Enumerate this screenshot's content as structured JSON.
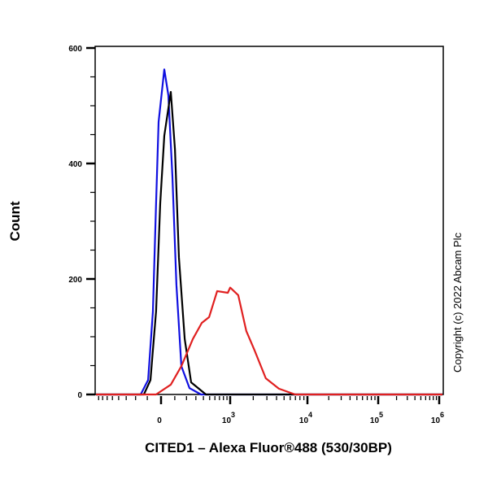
{
  "chart_data": {
    "type": "line",
    "title": "",
    "xlabel": "CITED1 – Alexa Fluor®488 (530/30BP)",
    "ylabel": "Count",
    "x_scale": "biexponential",
    "ylim": [
      0,
      600
    ],
    "y_ticks": [
      0,
      200,
      400,
      600
    ],
    "y_tick_labels": [
      "0",
      "200",
      "400",
      "600"
    ],
    "x_ticks": [
      0,
      1000,
      10000,
      100000,
      1000000
    ],
    "x_tick_labels": [
      {
        "base": "0",
        "exp": ""
      },
      {
        "base": "10",
        "exp": "3"
      },
      {
        "base": "10",
        "exp": "4"
      },
      {
        "base": "10",
        "exp": "5"
      },
      {
        "base": "10",
        "exp": "6"
      }
    ],
    "grid": false,
    "annotation": "Copyright (c) 2022 Abcam Plc",
    "series": [
      {
        "color": "#1010e0",
        "x": [
          -154,
          -94,
          -58,
          -35,
          -17,
          23,
          52,
          82,
          113,
          154,
          230,
          366
        ],
        "y": [
          0,
          25,
          144,
          331,
          472,
          563,
          518,
          377,
          190,
          49,
          11,
          0
        ]
      },
      {
        "color": "#000000",
        "x": [
          -127,
          -76,
          -35,
          -6,
          23,
          70,
          101,
          133,
          183,
          247,
          438
        ],
        "y": [
          0,
          25,
          144,
          331,
          448,
          524,
          425,
          237,
          96,
          21,
          0
        ]
      },
      {
        "color": "#e02020",
        "x": [
          -35,
          70,
          154,
          265,
          377,
          491,
          647,
          924,
          1000,
          1274,
          1624,
          2069,
          2904,
          4283,
          6950
        ],
        "y": [
          0,
          17,
          49,
          96,
          124,
          134,
          179,
          176,
          185,
          172,
          110,
          77,
          28,
          10,
          0
        ]
      }
    ]
  }
}
